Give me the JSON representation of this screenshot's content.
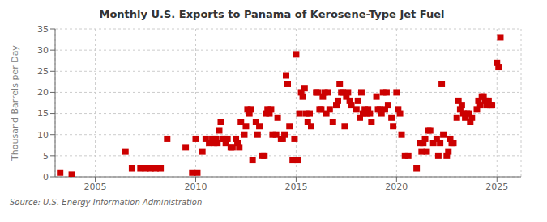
{
  "chart_data": {
    "type": "scatter",
    "title": "Monthly U.S. Exports to Panama of Kerosene-Type Jet Fuel",
    "ylabel": "Thousand Barrels per Day",
    "annotation": "Source: U.S. Energy Information Administration",
    "color": "#cc0000",
    "marker": "square",
    "grid": true,
    "xlim": [
      2003.0,
      2026.2
    ],
    "ylim": [
      0,
      35
    ],
    "xticks": [
      2005,
      2010,
      2015,
      2020,
      2025
    ],
    "yticks": [
      0,
      5,
      10,
      15,
      20,
      25,
      30,
      35
    ],
    "x": [
      2003.25,
      2003.83,
      2006.5,
      2006.83,
      2007.25,
      2007.5,
      2007.75,
      2008.0,
      2008.25,
      2008.58,
      2009.5,
      2009.83,
      2010.0,
      2010.08,
      2010.33,
      2010.5,
      2010.67,
      2010.83,
      2010.92,
      2011.0,
      2011.08,
      2011.17,
      2011.25,
      2011.33,
      2011.42,
      2011.5,
      2011.58,
      2011.75,
      2011.83,
      2012.0,
      2012.08,
      2012.17,
      2012.25,
      2012.42,
      2012.5,
      2012.58,
      2012.67,
      2012.75,
      2012.83,
      2013.0,
      2013.08,
      2013.17,
      2013.33,
      2013.42,
      2013.5,
      2013.58,
      2013.67,
      2013.75,
      2013.83,
      2014.0,
      2014.08,
      2014.25,
      2014.33,
      2014.42,
      2014.5,
      2014.58,
      2014.67,
      2014.83,
      2014.92,
      2015.0,
      2015.08,
      2015.17,
      2015.25,
      2015.33,
      2015.42,
      2015.5,
      2015.58,
      2015.67,
      2015.75,
      2016.0,
      2016.08,
      2016.17,
      2016.25,
      2016.33,
      2016.42,
      2016.5,
      2016.58,
      2016.67,
      2016.83,
      2017.0,
      2017.08,
      2017.17,
      2017.25,
      2017.33,
      2017.42,
      2017.5,
      2017.58,
      2017.67,
      2017.75,
      2018.0,
      2018.08,
      2018.17,
      2018.25,
      2018.33,
      2018.42,
      2018.5,
      2018.58,
      2018.67,
      2018.75,
      2019.0,
      2019.08,
      2019.17,
      2019.25,
      2019.33,
      2019.42,
      2019.5,
      2019.58,
      2019.75,
      2019.83,
      2020.0,
      2020.08,
      2020.17,
      2020.25,
      2020.42,
      2020.58,
      2021.0,
      2021.17,
      2021.25,
      2021.33,
      2021.42,
      2021.5,
      2021.58,
      2021.67,
      2021.83,
      2022.0,
      2022.08,
      2022.17,
      2022.25,
      2022.33,
      2022.5,
      2022.58,
      2022.67,
      2022.75,
      2022.83,
      2023.0,
      2023.08,
      2023.17,
      2023.25,
      2023.33,
      2023.42,
      2023.5,
      2023.58,
      2023.67,
      2023.75,
      2024.0,
      2024.08,
      2024.17,
      2024.25,
      2024.33,
      2024.42,
      2024.5,
      2024.58,
      2024.67,
      2024.75,
      2025.0,
      2025.08,
      2025.17
    ],
    "values": [
      1,
      0.5,
      6,
      2,
      2,
      2,
      2,
      2,
      2,
      9,
      7,
      1,
      9,
      1,
      6,
      9,
      8,
      9,
      8,
      9,
      8,
      11,
      13,
      9,
      9,
      8,
      9,
      7,
      7,
      9,
      8,
      7,
      13,
      10,
      12,
      16,
      15,
      16,
      4,
      13,
      10,
      12,
      5,
      5,
      15,
      16,
      15,
      16,
      10,
      10,
      14,
      9,
      9,
      10,
      24,
      22,
      12,
      4,
      9,
      29,
      4,
      15,
      20,
      19,
      21,
      15,
      13,
      15,
      12,
      20,
      20,
      16,
      16,
      19,
      20,
      15,
      20,
      16,
      13,
      17,
      18,
      22,
      20,
      20,
      12,
      19,
      20,
      18,
      17,
      16,
      18,
      14,
      20,
      15,
      16,
      15,
      16,
      15,
      13,
      19,
      16,
      16,
      15,
      20,
      16,
      20,
      17,
      14,
      12,
      20,
      16,
      15,
      10,
      5,
      5,
      2,
      8,
      6,
      8,
      9,
      6,
      11,
      11,
      8,
      9,
      5,
      8,
      22,
      10,
      5,
      6,
      9,
      8,
      8,
      14,
      18,
      16,
      17,
      15,
      14,
      15,
      15,
      13,
      14,
      16,
      18,
      17,
      19,
      19,
      18,
      17,
      18,
      17,
      17,
      27,
      26,
      33
    ]
  }
}
